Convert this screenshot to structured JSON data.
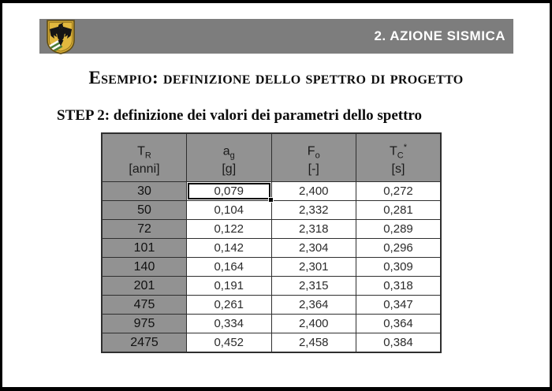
{
  "banner": {
    "title": "2. AZIONE SISMICA",
    "logo_icon": "eagle-shield-emblem",
    "bg_color": "#7d7d7d",
    "text_color": "#ffffff"
  },
  "slide": {
    "title": "Esempio: definizione dello spettro di progetto",
    "subtitle": "STEP 2: definizione dei valori dei parametri dello spettro"
  },
  "table": {
    "header_bg": "#929292",
    "columns": [
      {
        "symbol": "T",
        "sub": "R",
        "sup": "",
        "unit": "[anni]"
      },
      {
        "symbol": "a",
        "sub": "g",
        "sup": "",
        "unit": "[g]"
      },
      {
        "symbol": "F",
        "sub": "o",
        "sup": "",
        "unit": "[-]"
      },
      {
        "symbol": "T",
        "sub": "C",
        "sup": "*",
        "unit": "[s]"
      }
    ],
    "rows": [
      [
        "30",
        "0,079",
        "2,400",
        "0,272"
      ],
      [
        "50",
        "0,104",
        "2,332",
        "0,281"
      ],
      [
        "72",
        "0,122",
        "2,318",
        "0,289"
      ],
      [
        "101",
        "0,142",
        "2,304",
        "0,296"
      ],
      [
        "140",
        "0,164",
        "2,301",
        "0,309"
      ],
      [
        "201",
        "0,191",
        "2,315",
        "0,318"
      ],
      [
        "475",
        "0,261",
        "2,364",
        "0,347"
      ],
      [
        "975",
        "0,334",
        "2,400",
        "0,364"
      ],
      [
        "2475",
        "0,452",
        "2,458",
        "0,384"
      ]
    ],
    "selected_cell": {
      "row_index": 0,
      "col_index": 1,
      "value": "0,079"
    }
  }
}
